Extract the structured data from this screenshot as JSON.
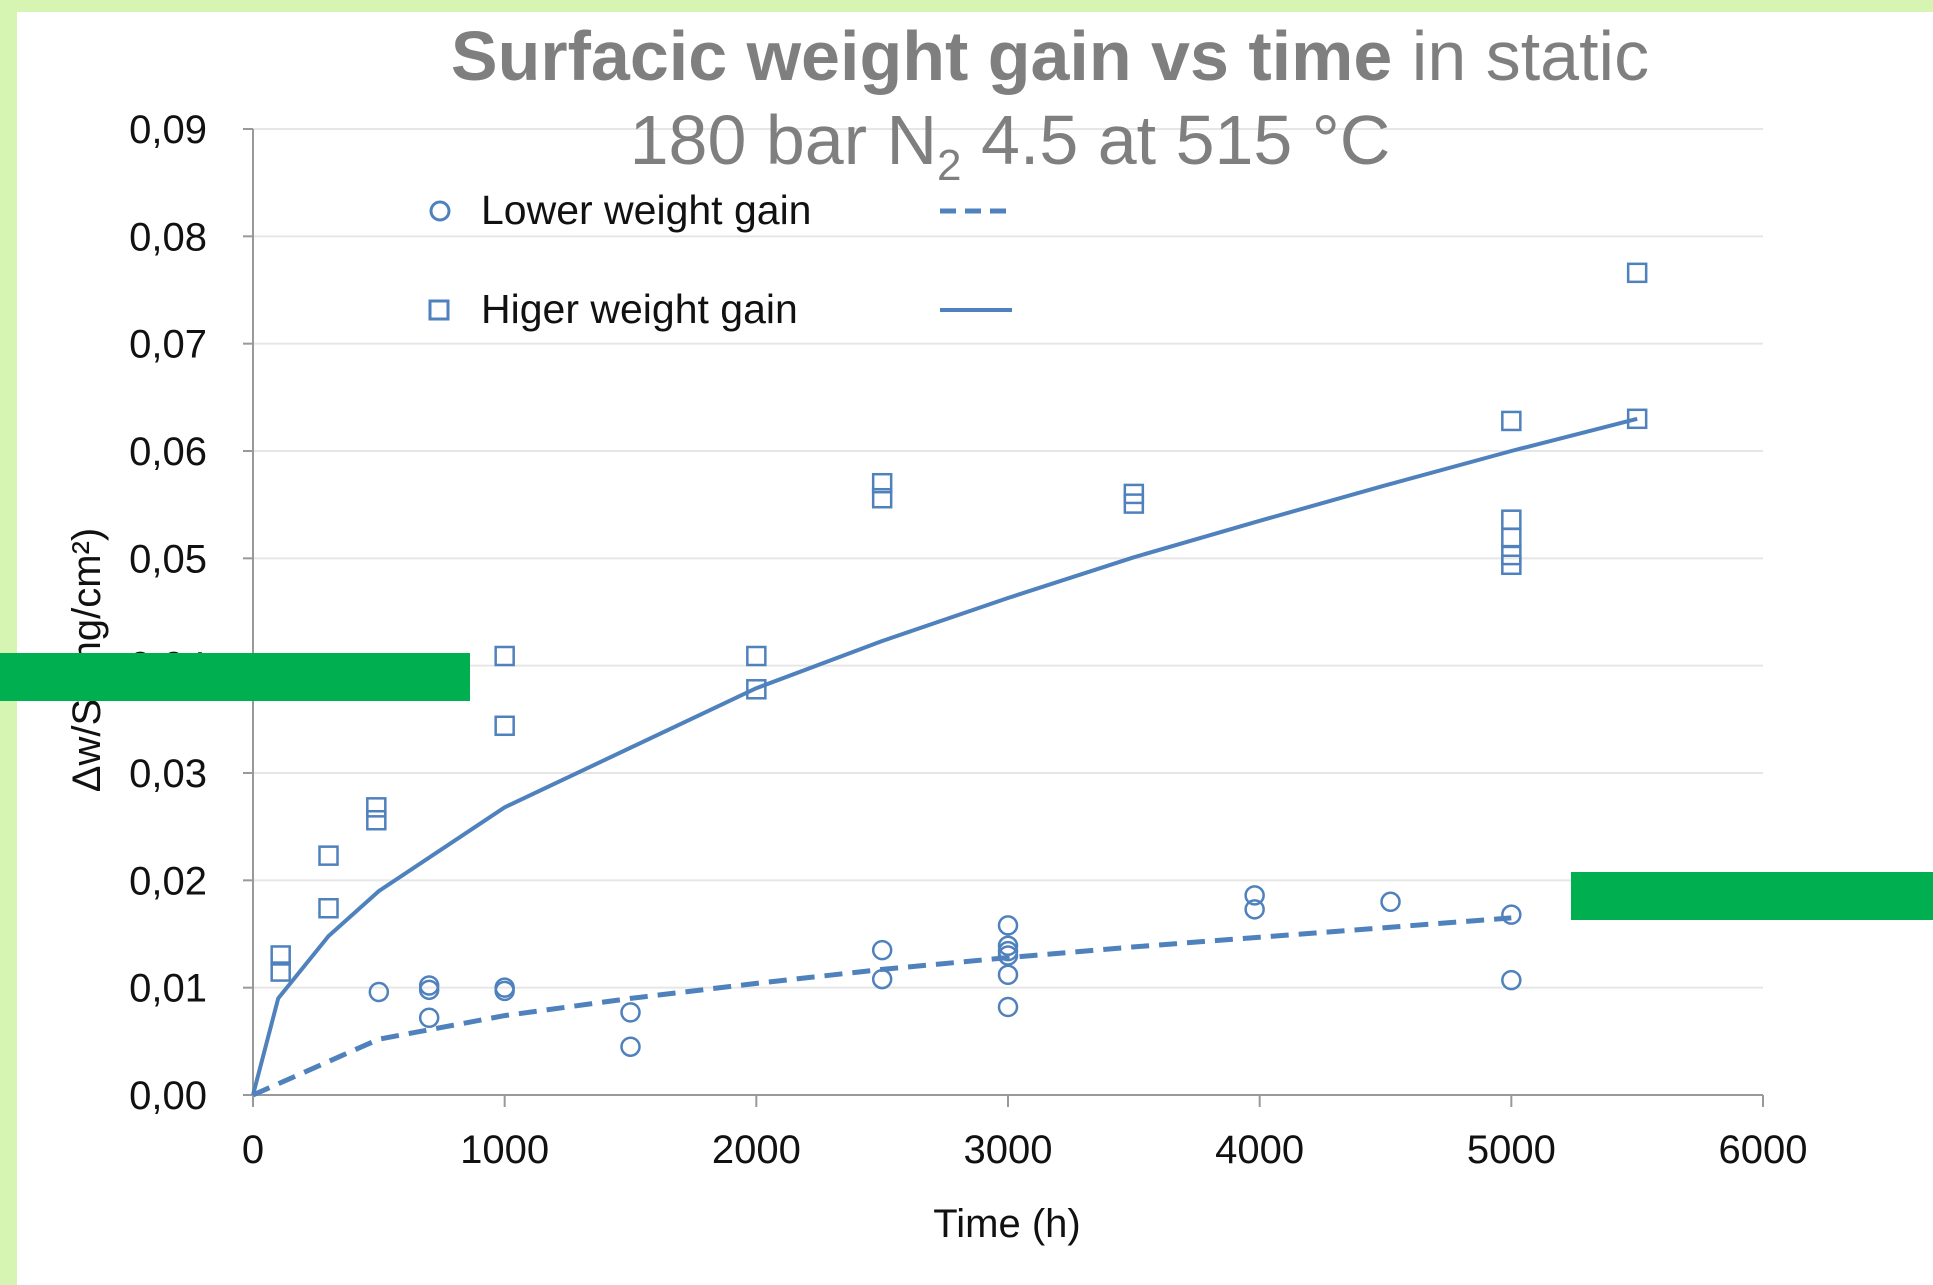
{
  "chart_data": {
    "type": "scatter",
    "title_bold": "Surfacic weight gain vs time",
    "title_rest": " in static",
    "subtitle_main": "180 bar N",
    "subtitle_sub": "2",
    "subtitle_end": " 4.5 at 515 °C",
    "xlabel": "Time (h)",
    "ylabel": "Δw/S (mg/cm²)",
    "xlim": [
      0,
      6000
    ],
    "ylim": [
      0,
      0.09
    ],
    "x_ticks": [
      "0",
      "1000",
      "2000",
      "3000",
      "4000",
      "5000",
      "6000"
    ],
    "y_ticks": [
      "0,00",
      "0,01",
      "0,02",
      "0,03",
      "0,04",
      "0,05",
      "0,06",
      "0,07",
      "0,08",
      "0,09"
    ],
    "grid": true,
    "legend_placement": "top-left",
    "color": "#4f81bd",
    "series": [
      {
        "name": "Lower weight gain",
        "marker": "circle",
        "points": [
          [
            500,
            0.0096
          ],
          [
            700,
            0.0098
          ],
          [
            700,
            0.0102
          ],
          [
            700,
            0.0072
          ],
          [
            1000,
            0.0097
          ],
          [
            1000,
            0.01
          ],
          [
            1500,
            0.0077
          ],
          [
            1500,
            0.0045
          ],
          [
            2500,
            0.0135
          ],
          [
            2500,
            0.0108
          ],
          [
            3000,
            0.0158
          ],
          [
            3000,
            0.0139
          ],
          [
            3000,
            0.0134
          ],
          [
            3000,
            0.013
          ],
          [
            3000,
            0.0112
          ],
          [
            3000,
            0.0082
          ],
          [
            3980,
            0.0186
          ],
          [
            3980,
            0.0173
          ],
          [
            4520,
            0.018
          ],
          [
            5000,
            0.0168
          ],
          [
            5000,
            0.0107
          ]
        ],
        "trend": {
          "style": "dashed",
          "points": [
            [
              0,
              0.0
            ],
            [
              500,
              0.0052
            ],
            [
              1000,
              0.0074
            ],
            [
              1500,
              0.009
            ],
            [
              2000,
              0.0104
            ],
            [
              2500,
              0.0117
            ],
            [
              3000,
              0.0128
            ],
            [
              3500,
              0.0138
            ],
            [
              4000,
              0.0147
            ],
            [
              4500,
              0.0156
            ],
            [
              5000,
              0.0165
            ]
          ]
        }
      },
      {
        "name": "Higer weight gain",
        "marker": "square",
        "points": [
          [
            110,
            0.013
          ],
          [
            110,
            0.0115
          ],
          [
            300,
            0.0223
          ],
          [
            300,
            0.0174
          ],
          [
            490,
            0.0268
          ],
          [
            490,
            0.0256
          ],
          [
            1000,
            0.0409
          ],
          [
            1000,
            0.0344
          ],
          [
            2000,
            0.0409
          ],
          [
            2000,
            0.0378
          ],
          [
            2500,
            0.057
          ],
          [
            2500,
            0.0556
          ],
          [
            3500,
            0.056
          ],
          [
            3500,
            0.0551
          ],
          [
            5000,
            0.0628
          ],
          [
            5000,
            0.0536
          ],
          [
            5000,
            0.0519
          ],
          [
            5000,
            0.0503
          ],
          [
            5000,
            0.0494
          ],
          [
            5500,
            0.0766
          ],
          [
            5500,
            0.063
          ]
        ],
        "trend": {
          "style": "solid",
          "points": [
            [
              0,
              0.0
            ],
            [
              100,
              0.009
            ],
            [
              300,
              0.0148
            ],
            [
              500,
              0.019
            ],
            [
              1000,
              0.0268
            ],
            [
              2000,
              0.0379
            ],
            [
              2500,
              0.0423
            ],
            [
              3000,
              0.0463
            ],
            [
              3500,
              0.0501
            ],
            [
              4000,
              0.0535
            ],
            [
              4500,
              0.0568
            ],
            [
              5000,
              0.06
            ],
            [
              5500,
              0.063
            ]
          ]
        }
      }
    ],
    "overlay_color": "#00b050"
  }
}
